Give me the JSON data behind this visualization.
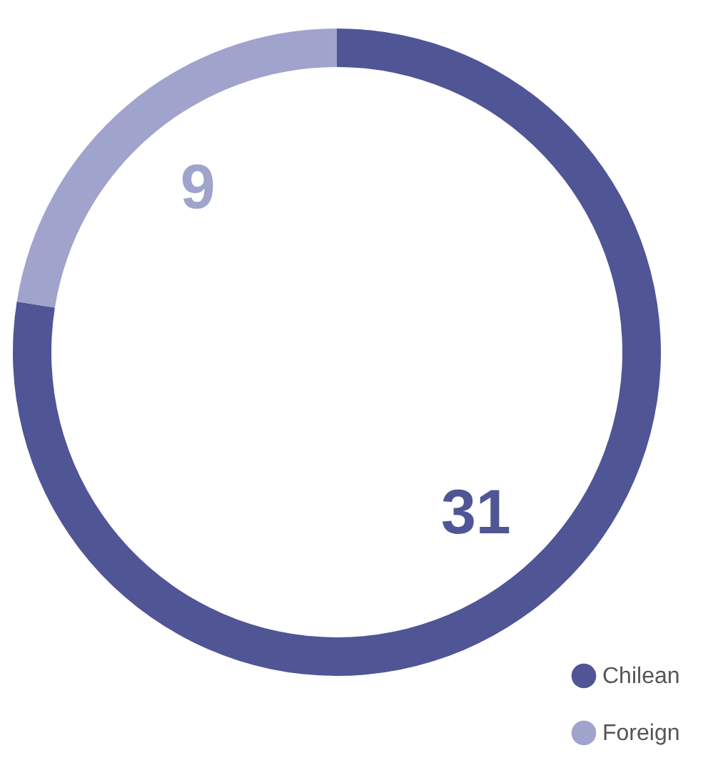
{
  "chart_data": {
    "type": "donut",
    "categories": [
      "Chilean",
      "Foreign"
    ],
    "values": [
      31,
      9
    ],
    "colors": [
      "#4f5595",
      "#a0a3cc"
    ],
    "data_labels": true,
    "legend": "bottom right"
  }
}
